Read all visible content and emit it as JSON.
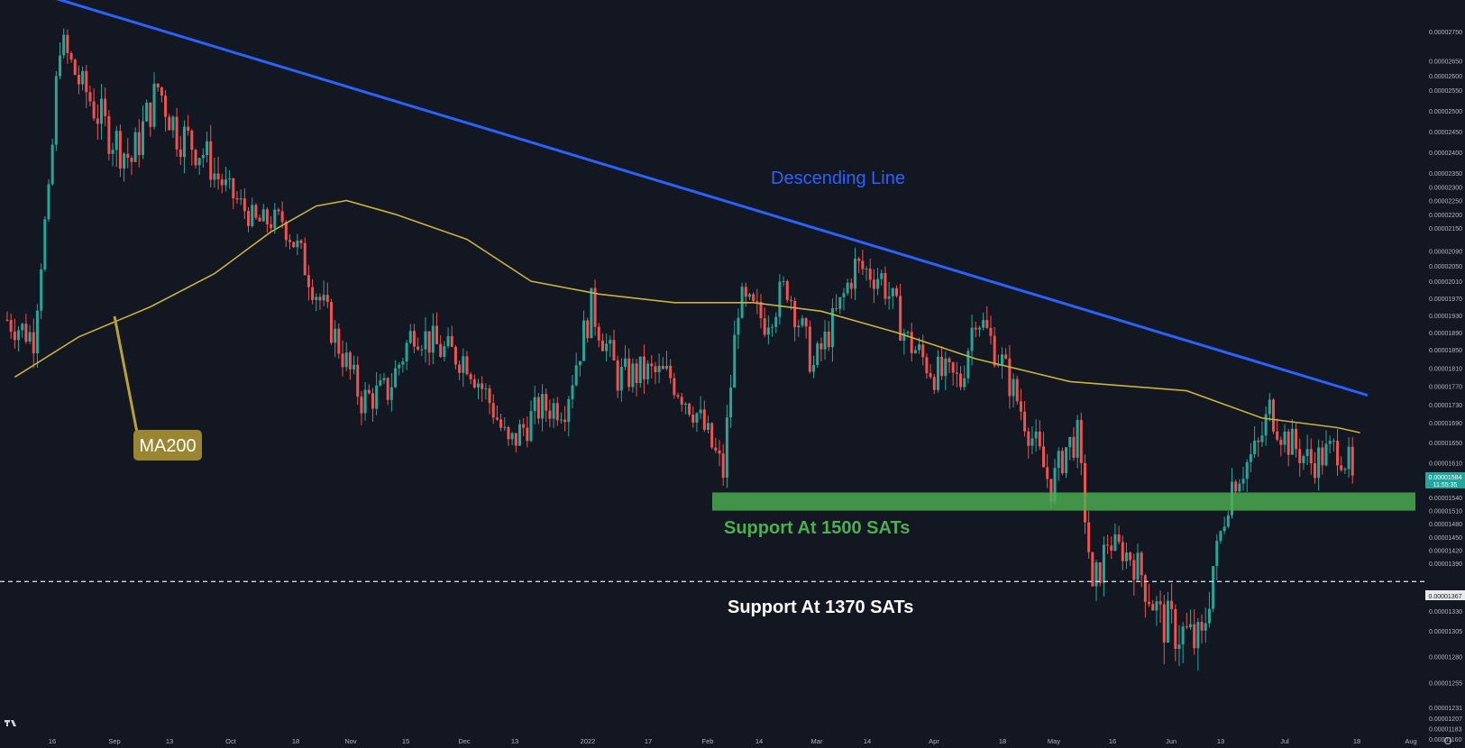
{
  "colors": {
    "background": "#131722",
    "up": "#26a69a",
    "down": "#ef5350",
    "trendline": "#2962ff",
    "ma200": "#c9b23c",
    "support_zone": "#4caf50",
    "axis_text": "#b2b5be"
  },
  "chart_data": {
    "type": "candlestick",
    "title": "",
    "y_axis_ticks": [
      "0.00002750",
      "0.00002650",
      "0.00002600",
      "0.00002550",
      "0.00002500",
      "0.00002450",
      "0.00002400",
      "0.00002350",
      "0.00002300",
      "0.00002250",
      "0.00002200",
      "0.00002150",
      "0.00002090",
      "0.00002050",
      "0.00002010",
      "0.00001970",
      "0.00001930",
      "0.00001890",
      "0.00001850",
      "0.00001810",
      "0.00001770",
      "0.00001730",
      "0.00001690",
      "0.00001650",
      "0.00001610",
      "0.00001540",
      "0.00001510",
      "0.00001480",
      "0.00001450",
      "0.00001420",
      "0.00001390",
      "0.00001330",
      "0.00001305",
      "0.00001280",
      "0.00001255",
      "0.00001231",
      "0.00001207",
      "0.00001183",
      "0.00001160"
    ],
    "x_axis_ticks": [
      "16",
      "Sep",
      "13",
      "Oct",
      "18",
      "Nov",
      "15",
      "Dec",
      "13",
      "2022",
      "17",
      "Feb",
      "14",
      "Mar",
      "14",
      "Apr",
      "18",
      "May",
      "16",
      "Jun",
      "13",
      "Jul",
      "18",
      "Aug"
    ],
    "current_price": {
      "value": "0.00001584",
      "countdown": "11:55:35"
    },
    "dashed_level_label": "0.00001367",
    "ma200_label": "MA200",
    "annotations": {
      "trendline": "Descending Line",
      "support_zone": "Support At 1500 SATs",
      "support_line": "Support At 1370 SATs"
    },
    "support_zone_range": [
      1510,
      1550
    ],
    "support_line_level": 1367,
    "trendline_points": [
      {
        "date": "2021-08-12",
        "value": 2880
      },
      {
        "date": "2022-07-28",
        "value": 1750
      }
    ],
    "ma200": [
      {
        "date": "2021-08-03",
        "value": 1790
      },
      {
        "date": "2021-08-20",
        "value": 1880
      },
      {
        "date": "2021-09-08",
        "value": 1950
      },
      {
        "date": "2021-09-25",
        "value": 2030
      },
      {
        "date": "2021-10-10",
        "value": 2140
      },
      {
        "date": "2021-10-22",
        "value": 2230
      },
      {
        "date": "2021-10-30",
        "value": 2250
      },
      {
        "date": "2021-11-12",
        "value": 2200
      },
      {
        "date": "2021-12-01",
        "value": 2120
      },
      {
        "date": "2021-12-18",
        "value": 2010
      },
      {
        "date": "2022-01-05",
        "value": 1980
      },
      {
        "date": "2022-01-25",
        "value": 1960
      },
      {
        "date": "2022-02-15",
        "value": 1960
      },
      {
        "date": "2022-03-05",
        "value": 1940
      },
      {
        "date": "2022-03-25",
        "value": 1890
      },
      {
        "date": "2022-04-15",
        "value": 1830
      },
      {
        "date": "2022-05-10",
        "value": 1780
      },
      {
        "date": "2022-06-10",
        "value": 1760
      },
      {
        "date": "2022-06-30",
        "value": 1700
      },
      {
        "date": "2022-07-20",
        "value": 1680
      },
      {
        "date": "2022-07-26",
        "value": 1670
      }
    ],
    "price_path": [
      {
        "date": "2021-08-01",
        "value": 1920
      },
      {
        "date": "2021-08-08",
        "value": 1880
      },
      {
        "date": "2021-08-12",
        "value": 2260
      },
      {
        "date": "2021-08-15",
        "value": 2720
      },
      {
        "date": "2021-08-20",
        "value": 2580
      },
      {
        "date": "2021-08-27",
        "value": 2460
      },
      {
        "date": "2021-09-03",
        "value": 2380
      },
      {
        "date": "2021-09-10",
        "value": 2560
      },
      {
        "date": "2021-09-15",
        "value": 2450
      },
      {
        "date": "2021-09-22",
        "value": 2400
      },
      {
        "date": "2021-09-29",
        "value": 2280
      },
      {
        "date": "2021-10-06",
        "value": 2170
      },
      {
        "date": "2021-10-13",
        "value": 2180
      },
      {
        "date": "2021-10-20",
        "value": 2030
      },
      {
        "date": "2021-10-27",
        "value": 1880
      },
      {
        "date": "2021-11-03",
        "value": 1740
      },
      {
        "date": "2021-11-10",
        "value": 1760
      },
      {
        "date": "2021-11-17",
        "value": 1900
      },
      {
        "date": "2021-11-24",
        "value": 1850
      },
      {
        "date": "2021-12-01",
        "value": 1830
      },
      {
        "date": "2021-12-08",
        "value": 1720
      },
      {
        "date": "2021-12-12",
        "value": 1640
      },
      {
        "date": "2021-12-20",
        "value": 1720
      },
      {
        "date": "2021-12-27",
        "value": 1730
      },
      {
        "date": "2022-01-03",
        "value": 1950
      },
      {
        "date": "2022-01-10",
        "value": 1790
      },
      {
        "date": "2022-01-17",
        "value": 1800
      },
      {
        "date": "2022-01-24",
        "value": 1790
      },
      {
        "date": "2022-01-31",
        "value": 1710
      },
      {
        "date": "2022-02-07",
        "value": 1590
      },
      {
        "date": "2022-02-11",
        "value": 1960
      },
      {
        "date": "2022-02-18",
        "value": 1920
      },
      {
        "date": "2022-02-24",
        "value": 2000
      },
      {
        "date": "2022-03-03",
        "value": 1810
      },
      {
        "date": "2022-03-10",
        "value": 1950
      },
      {
        "date": "2022-03-14",
        "value": 2050
      },
      {
        "date": "2022-03-21",
        "value": 2020
      },
      {
        "date": "2022-03-28",
        "value": 1870
      },
      {
        "date": "2022-04-04",
        "value": 1800
      },
      {
        "date": "2022-04-11",
        "value": 1780
      },
      {
        "date": "2022-04-15",
        "value": 1940
      },
      {
        "date": "2022-04-22",
        "value": 1820
      },
      {
        "date": "2022-04-29",
        "value": 1680
      },
      {
        "date": "2022-05-05",
        "value": 1560
      },
      {
        "date": "2022-05-09",
        "value": 1640
      },
      {
        "date": "2022-05-12",
        "value": 1660
      },
      {
        "date": "2022-05-16",
        "value": 1340
      },
      {
        "date": "2022-05-20",
        "value": 1440
      },
      {
        "date": "2022-05-27",
        "value": 1400
      },
      {
        "date": "2022-06-03",
        "value": 1320
      },
      {
        "date": "2022-06-10",
        "value": 1300
      },
      {
        "date": "2022-06-14",
        "value": 1290
      },
      {
        "date": "2022-06-18",
        "value": 1420
      },
      {
        "date": "2022-06-22",
        "value": 1570
      },
      {
        "date": "2022-06-29",
        "value": 1640
      },
      {
        "date": "2022-07-02",
        "value": 1720
      },
      {
        "date": "2022-07-06",
        "value": 1660
      },
      {
        "date": "2022-07-13",
        "value": 1610
      },
      {
        "date": "2022-07-20",
        "value": 1640
      },
      {
        "date": "2022-07-25",
        "value": 1584
      }
    ],
    "grid": false
  }
}
